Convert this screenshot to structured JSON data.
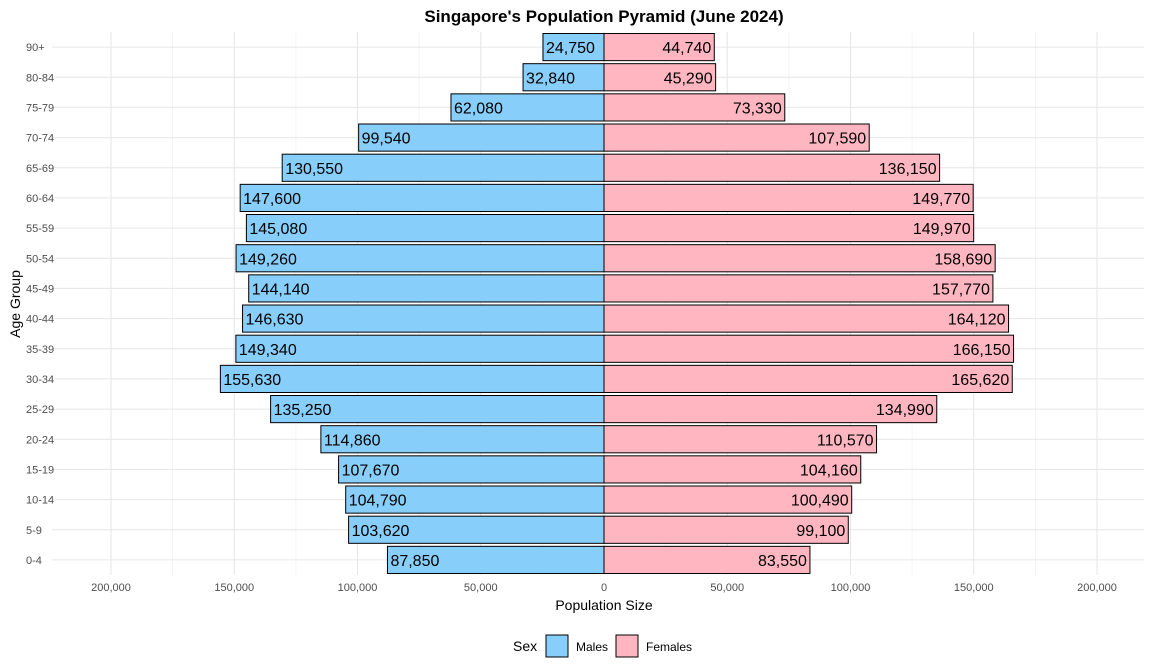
{
  "chart_data": {
    "type": "bar",
    "orientation": "horizontal",
    "title": "Singapore's Population Pyramid (June 2024)",
    "xlabel": "Population Size",
    "ylabel": "Age Group",
    "xlim": [
      -200000,
      200000
    ],
    "xticks": [
      -200000,
      -150000,
      -100000,
      -50000,
      0,
      50000,
      100000,
      150000,
      200000
    ],
    "xtick_labels": [
      "200,000",
      "150,000",
      "100,000",
      "50,000",
      "0",
      "50,000",
      "100,000",
      "150,000",
      "200,000"
    ],
    "categories": [
      "0-4",
      "5-9",
      "10-14",
      "15-19",
      "20-24",
      "25-29",
      "30-34",
      "35-39",
      "40-44",
      "45-49",
      "50-54",
      "55-59",
      "60-64",
      "65-69",
      "70-74",
      "75-79",
      "80-84",
      "90+"
    ],
    "series": [
      {
        "name": "Males",
        "color": "#87CEFA",
        "values": [
          87850,
          103620,
          104790,
          107670,
          114860,
          135250,
          155630,
          149340,
          146630,
          144140,
          149260,
          145080,
          147600,
          130550,
          99540,
          62080,
          32840,
          24750
        ],
        "labels": [
          "87,850",
          "103,620",
          "104,790",
          "107,670",
          "114,860",
          "135,250",
          "155,630",
          "149,340",
          "146,630",
          "144,140",
          "149,260",
          "145,080",
          "147,600",
          "130,550",
          "99,540",
          "62,080",
          "32,840",
          "24,750"
        ]
      },
      {
        "name": "Females",
        "color": "#FFB6C1",
        "values": [
          83550,
          99100,
          100490,
          104160,
          110570,
          134990,
          165620,
          166150,
          164120,
          157770,
          158690,
          149970,
          149770,
          136150,
          107590,
          73330,
          45290,
          44740
        ],
        "labels": [
          "83,550",
          "99,100",
          "100,490",
          "104,160",
          "110,570",
          "134,990",
          "165,620",
          "166,150",
          "164,120",
          "157,770",
          "158,690",
          "149,970",
          "149,770",
          "136,150",
          "107,590",
          "73,330",
          "45,290",
          "44,740"
        ]
      }
    ],
    "grid": true,
    "legend": {
      "title": "Sex",
      "position": "bottom"
    }
  }
}
